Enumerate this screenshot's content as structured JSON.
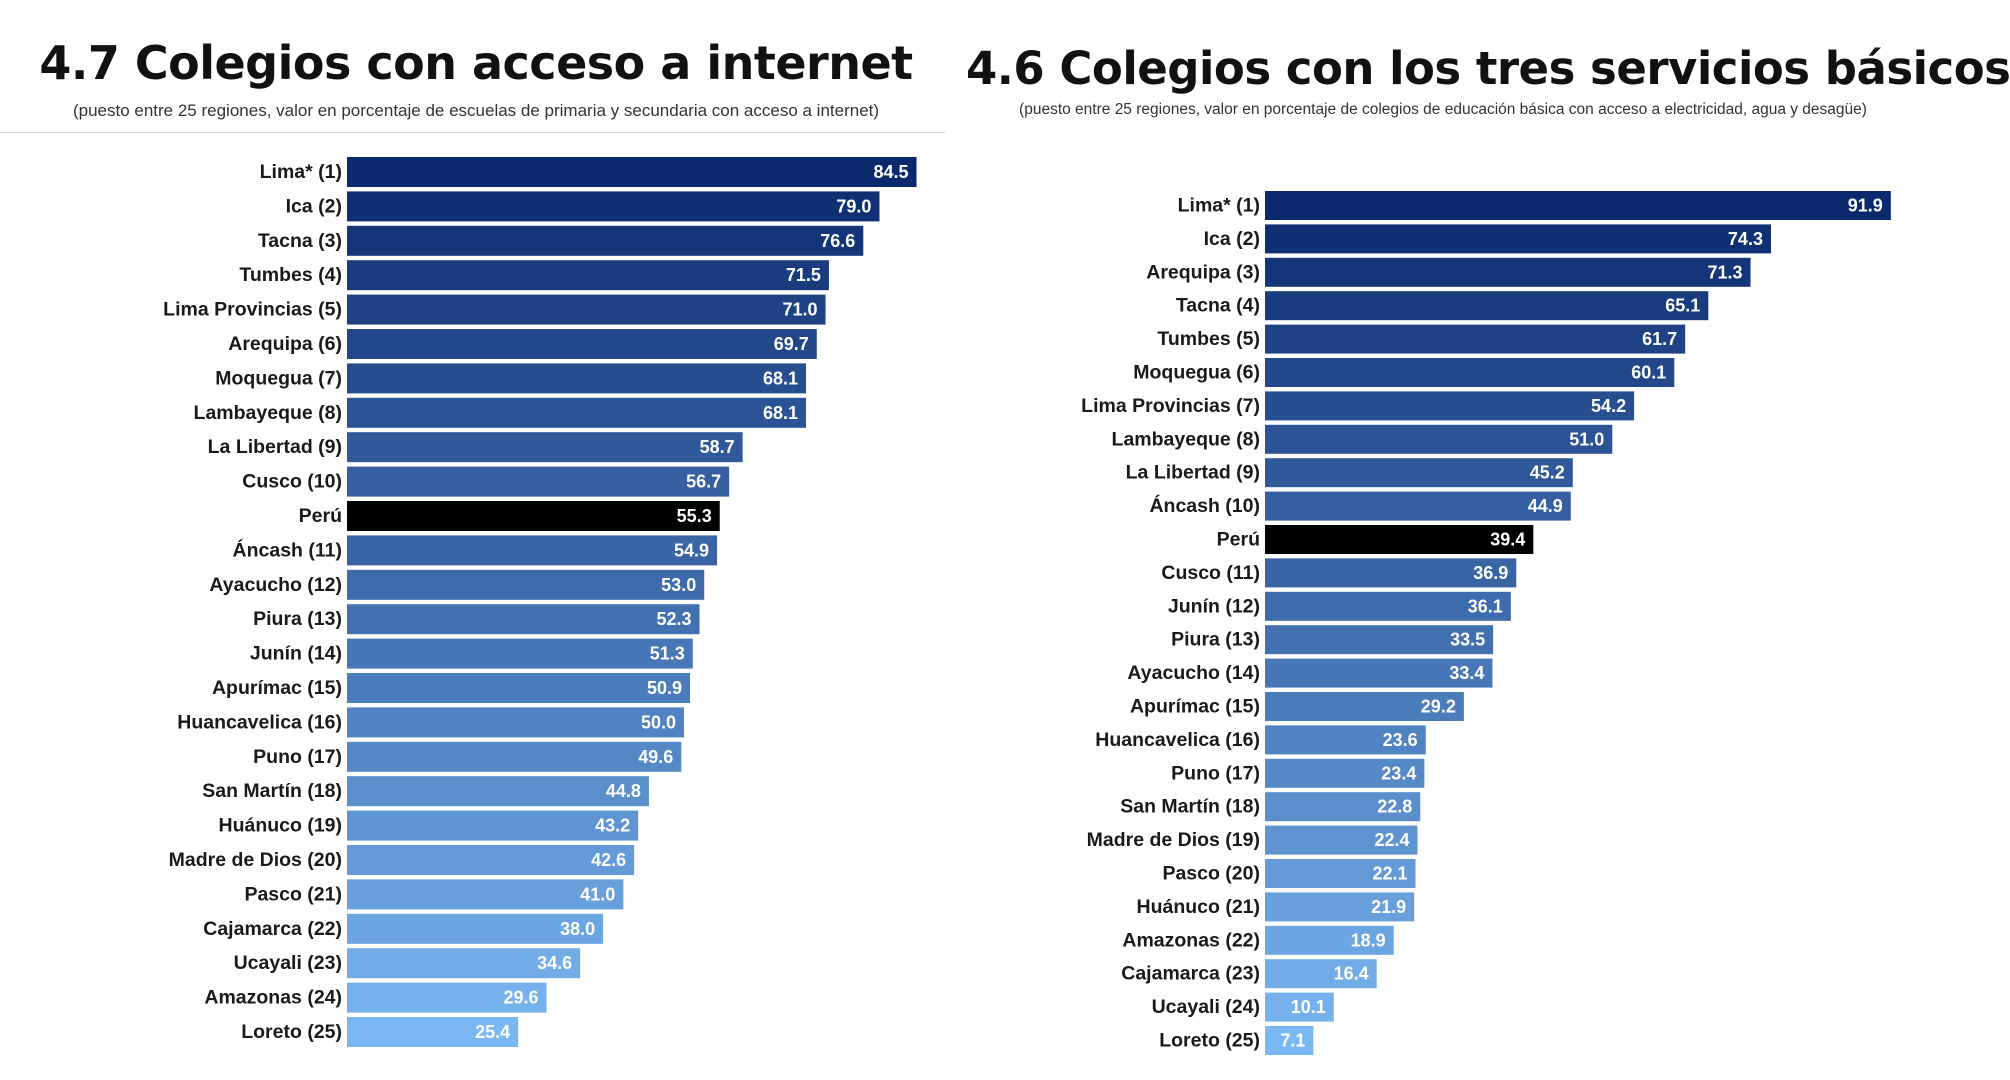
{
  "chart_data": [
    {
      "type": "bar",
      "orientation": "horizontal",
      "title": "4.7 Colegios con acceso a internet",
      "subtitle": "(puesto entre 25 regiones, valor en porcentaje de escuelas de primaria y secundaria con acceso a internet)",
      "categories": [
        "Lima* (1)",
        "Ica (2)",
        "Tacna (3)",
        "Tumbes (4)",
        "Lima Provincias (5)",
        "Arequipa (6)",
        "Moquegua (7)",
        "Lambayeque (8)",
        "La Libertad (9)",
        "Cusco (10)",
        "Perú",
        "Áncash (11)",
        "Ayacucho (12)",
        "Piura (13)",
        "Junín (14)",
        "Apurímac (15)",
        "Huancavelica (16)",
        "Puno (17)",
        "San Martín (18)",
        "Huánuco (19)",
        "Madre de Dios (20)",
        "Pasco (21)",
        "Cajamarca (22)",
        "Ucayali (23)",
        "Amazonas (24)",
        "Loreto (25)"
      ],
      "values": [
        84.5,
        79.0,
        76.6,
        71.5,
        71.0,
        69.7,
        68.1,
        68.1,
        58.7,
        56.7,
        55.3,
        54.9,
        53.0,
        52.3,
        51.3,
        50.9,
        50.0,
        49.6,
        44.8,
        43.2,
        42.6,
        41.0,
        38.0,
        34.6,
        29.6,
        25.4
      ],
      "value_labels": [
        "84.5",
        "79.0",
        "76.6",
        "71.5",
        "71.0",
        "69.7",
        "68.1",
        "68.1",
        "58.7",
        "56.7",
        "55.3",
        "54.9",
        "53.0",
        "52.3",
        "51.3",
        "50.9",
        "50.0",
        "49.6",
        "44.8",
        "43.2",
        "42.6",
        "41.0",
        "38.0",
        "34.6",
        "29.6",
        "25.4"
      ],
      "highlight_category": "Perú",
      "highlight_color": "#000000",
      "color_gradient": [
        "#0b2a6e",
        "#7ab8f2"
      ],
      "xlim": [
        0,
        100
      ],
      "grid": false,
      "legend": "none"
    },
    {
      "type": "bar",
      "orientation": "horizontal",
      "title": "4.6 Colegios con los tres servicios básicos",
      "subtitle": "(puesto entre 25 regiones, valor en porcentaje de colegios de educación básica con acceso a electricidad, agua y desagüe)",
      "categories": [
        "Lima* (1)",
        "Ica (2)",
        "Arequipa (3)",
        "Tacna (4)",
        "Tumbes (5)",
        "Moquegua (6)",
        "Lima Provincias (7)",
        "Lambayeque (8)",
        "La Libertad (9)",
        "Áncash (10)",
        "Perú",
        "Cusco (11)",
        "Junín (12)",
        "Piura (13)",
        "Ayacucho (14)",
        "Apurímac (15)",
        "Huancavelica (16)",
        "Puno (17)",
        "San Martín (18)",
        "Madre de Dios (19)",
        "Pasco (20)",
        "Huánuco (21)",
        "Amazonas (22)",
        "Cajamarca (23)",
        "Ucayali (24)",
        "Loreto (25)"
      ],
      "values": [
        91.9,
        74.3,
        71.3,
        65.1,
        61.7,
        60.1,
        54.2,
        51.0,
        45.2,
        44.9,
        39.4,
        36.9,
        36.1,
        33.5,
        33.4,
        29.2,
        23.6,
        23.4,
        22.8,
        22.4,
        22.1,
        21.9,
        18.9,
        16.4,
        10.1,
        7.1
      ],
      "value_labels": [
        "91.9",
        "74.3",
        "71.3",
        "65.1",
        "61.7",
        "60.1",
        "54.2",
        "51.0",
        "45.2",
        "44.9",
        "39.4",
        "36.9",
        "36.1",
        "33.5",
        "33.4",
        "29.2",
        "23.6",
        "23.4",
        "22.8",
        "22.4",
        "22.1",
        "21.9",
        "18.9",
        "16.4",
        "10.1",
        "7.1"
      ],
      "highlight_category": "Perú",
      "highlight_color": "#000000",
      "color_gradient": [
        "#0b2a6e",
        "#7ab8f2"
      ],
      "xlim": [
        0,
        100
      ],
      "grid": false,
      "legend": "none"
    }
  ]
}
